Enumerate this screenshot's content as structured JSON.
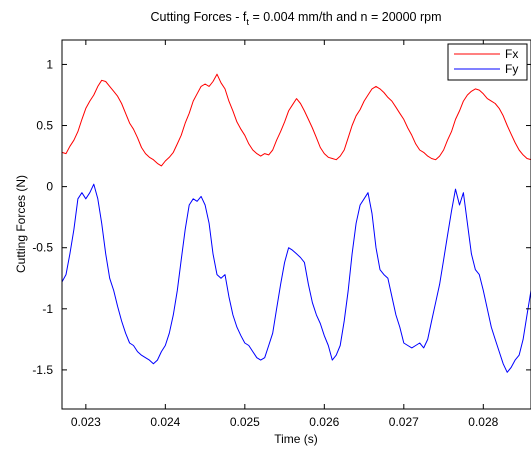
{
  "chart_data": {
    "type": "line",
    "title_parts": [
      "Cutting Forces - f",
      "t",
      " = 0.004 mm/th and n = 20000 rpm"
    ],
    "xlabel": "Time (s)",
    "ylabel": "Cutting Forces (N)",
    "xlim": [
      0.0227,
      0.0286
    ],
    "ylim": [
      -1.82,
      1.2
    ],
    "xticks": [
      0.023,
      0.024,
      0.025,
      0.026,
      0.027,
      0.028
    ],
    "xtick_labels": [
      "0.023",
      "0.024",
      "0.025",
      "0.026",
      "0.027",
      "0.028"
    ],
    "yticks": [
      1,
      0.5,
      0,
      -0.5,
      -1,
      -1.5
    ],
    "ytick_labels": [
      "1",
      "0.5",
      "0",
      "-0.5",
      "-1",
      "-1.5"
    ],
    "grid": false,
    "legend_position": "top-right",
    "series": [
      {
        "name": "Fx",
        "color": "#ff0000",
        "x": [
          0.0227,
          0.02275,
          0.0228,
          0.02285,
          0.0229,
          0.02295,
          0.023,
          0.02305,
          0.0231,
          0.02315,
          0.0232,
          0.02325,
          0.0233,
          0.02335,
          0.0234,
          0.02345,
          0.0235,
          0.02355,
          0.0236,
          0.02365,
          0.0237,
          0.02375,
          0.0238,
          0.02385,
          0.0239,
          0.02395,
          0.024,
          0.02405,
          0.0241,
          0.02415,
          0.0242,
          0.02425,
          0.0243,
          0.02435,
          0.0244,
          0.02445,
          0.0245,
          0.02455,
          0.0246,
          0.02465,
          0.0247,
          0.02475,
          0.0248,
          0.02485,
          0.0249,
          0.02495,
          0.025,
          0.02505,
          0.0251,
          0.02515,
          0.0252,
          0.02525,
          0.0253,
          0.02535,
          0.0254,
          0.02545,
          0.0255,
          0.02555,
          0.0256,
          0.02565,
          0.0257,
          0.02575,
          0.0258,
          0.02585,
          0.0259,
          0.02595,
          0.026,
          0.02605,
          0.0261,
          0.02615,
          0.0262,
          0.02625,
          0.0263,
          0.02635,
          0.0264,
          0.02645,
          0.0265,
          0.02655,
          0.0266,
          0.02665,
          0.0267,
          0.02675,
          0.0268,
          0.02685,
          0.0269,
          0.02695,
          0.027,
          0.02705,
          0.0271,
          0.02715,
          0.0272,
          0.02725,
          0.0273,
          0.02735,
          0.0274,
          0.02745,
          0.0275,
          0.02755,
          0.0276,
          0.02765,
          0.0277,
          0.02775,
          0.0278,
          0.02785,
          0.0279,
          0.02795,
          0.028,
          0.02805,
          0.0281,
          0.02815,
          0.0282,
          0.02825,
          0.0283,
          0.02835,
          0.0284,
          0.02845,
          0.0285,
          0.02855,
          0.0286
        ],
        "y": [
          0.28,
          0.27,
          0.33,
          0.38,
          0.45,
          0.55,
          0.64,
          0.7,
          0.75,
          0.82,
          0.87,
          0.86,
          0.82,
          0.78,
          0.74,
          0.68,
          0.6,
          0.52,
          0.47,
          0.4,
          0.32,
          0.27,
          0.24,
          0.22,
          0.19,
          0.17,
          0.21,
          0.24,
          0.28,
          0.35,
          0.42,
          0.52,
          0.6,
          0.7,
          0.76,
          0.82,
          0.84,
          0.82,
          0.86,
          0.92,
          0.85,
          0.8,
          0.7,
          0.62,
          0.53,
          0.47,
          0.42,
          0.35,
          0.3,
          0.27,
          0.25,
          0.27,
          0.26,
          0.3,
          0.38,
          0.45,
          0.53,
          0.62,
          0.67,
          0.72,
          0.68,
          0.62,
          0.55,
          0.48,
          0.4,
          0.32,
          0.27,
          0.24,
          0.23,
          0.22,
          0.25,
          0.3,
          0.4,
          0.5,
          0.58,
          0.63,
          0.7,
          0.75,
          0.8,
          0.82,
          0.8,
          0.77,
          0.73,
          0.7,
          0.65,
          0.6,
          0.55,
          0.48,
          0.42,
          0.35,
          0.3,
          0.28,
          0.25,
          0.23,
          0.22,
          0.25,
          0.3,
          0.38,
          0.45,
          0.55,
          0.62,
          0.7,
          0.75,
          0.78,
          0.8,
          0.79,
          0.76,
          0.72,
          0.7,
          0.68,
          0.64,
          0.58,
          0.5,
          0.43,
          0.36,
          0.3,
          0.26,
          0.23,
          0.22
        ]
      },
      {
        "name": "Fy",
        "color": "#0000ff",
        "x": [
          0.0227,
          0.02275,
          0.0228,
          0.02285,
          0.0229,
          0.02295,
          0.023,
          0.02305,
          0.0231,
          0.02315,
          0.0232,
          0.02325,
          0.0233,
          0.02335,
          0.0234,
          0.02345,
          0.0235,
          0.02355,
          0.0236,
          0.02365,
          0.0237,
          0.02375,
          0.0238,
          0.02385,
          0.0239,
          0.02395,
          0.024,
          0.02405,
          0.0241,
          0.02415,
          0.0242,
          0.02425,
          0.0243,
          0.02435,
          0.0244,
          0.02445,
          0.0245,
          0.02455,
          0.0246,
          0.02465,
          0.0247,
          0.02475,
          0.0248,
          0.02485,
          0.0249,
          0.02495,
          0.025,
          0.02505,
          0.0251,
          0.02515,
          0.0252,
          0.02525,
          0.0253,
          0.02535,
          0.0254,
          0.02545,
          0.0255,
          0.02555,
          0.0256,
          0.02565,
          0.0257,
          0.02575,
          0.0258,
          0.02585,
          0.0259,
          0.02595,
          0.026,
          0.02605,
          0.0261,
          0.02615,
          0.0262,
          0.02625,
          0.0263,
          0.02635,
          0.0264,
          0.02645,
          0.0265,
          0.02655,
          0.0266,
          0.02665,
          0.0267,
          0.02675,
          0.0268,
          0.02685,
          0.0269,
          0.02695,
          0.027,
          0.02705,
          0.0271,
          0.02715,
          0.0272,
          0.02725,
          0.0273,
          0.02735,
          0.0274,
          0.02745,
          0.0275,
          0.02755,
          0.0276,
          0.02765,
          0.0277,
          0.02775,
          0.0278,
          0.02785,
          0.0279,
          0.02795,
          0.028,
          0.02805,
          0.0281,
          0.02815,
          0.0282,
          0.02825,
          0.0283,
          0.02835,
          0.0284,
          0.02845,
          0.0285,
          0.02855,
          0.0286
        ],
        "y": [
          -0.78,
          -0.72,
          -0.55,
          -0.35,
          -0.1,
          -0.05,
          -0.1,
          -0.05,
          0.02,
          -0.1,
          -0.3,
          -0.55,
          -0.75,
          -0.85,
          -0.98,
          -1.1,
          -1.2,
          -1.28,
          -1.3,
          -1.35,
          -1.38,
          -1.4,
          -1.42,
          -1.45,
          -1.42,
          -1.35,
          -1.3,
          -1.2,
          -1.05,
          -0.85,
          -0.6,
          -0.35,
          -0.15,
          -0.1,
          -0.12,
          -0.08,
          -0.15,
          -0.3,
          -0.55,
          -0.72,
          -0.75,
          -0.72,
          -0.9,
          -1.05,
          -1.15,
          -1.22,
          -1.28,
          -1.3,
          -1.35,
          -1.4,
          -1.42,
          -1.4,
          -1.3,
          -1.2,
          -1.0,
          -0.8,
          -0.62,
          -0.5,
          -0.52,
          -0.55,
          -0.58,
          -0.62,
          -0.8,
          -0.95,
          -1.05,
          -1.12,
          -1.22,
          -1.3,
          -1.42,
          -1.38,
          -1.3,
          -1.1,
          -0.85,
          -0.55,
          -0.3,
          -0.15,
          -0.1,
          -0.05,
          -0.22,
          -0.5,
          -0.68,
          -0.72,
          -0.75,
          -0.9,
          -1.05,
          -1.15,
          -1.28,
          -1.3,
          -1.32,
          -1.3,
          -1.28,
          -1.32,
          -1.25,
          -1.1,
          -0.95,
          -0.8,
          -0.6,
          -0.4,
          -0.2,
          -0.02,
          -0.15,
          -0.05,
          -0.3,
          -0.55,
          -0.68,
          -0.72,
          -0.85,
          -1.0,
          -1.15,
          -1.25,
          -1.35,
          -1.45,
          -1.52,
          -1.48,
          -1.42,
          -1.38,
          -1.25,
          -1.05,
          -0.85
        ]
      }
    ]
  }
}
